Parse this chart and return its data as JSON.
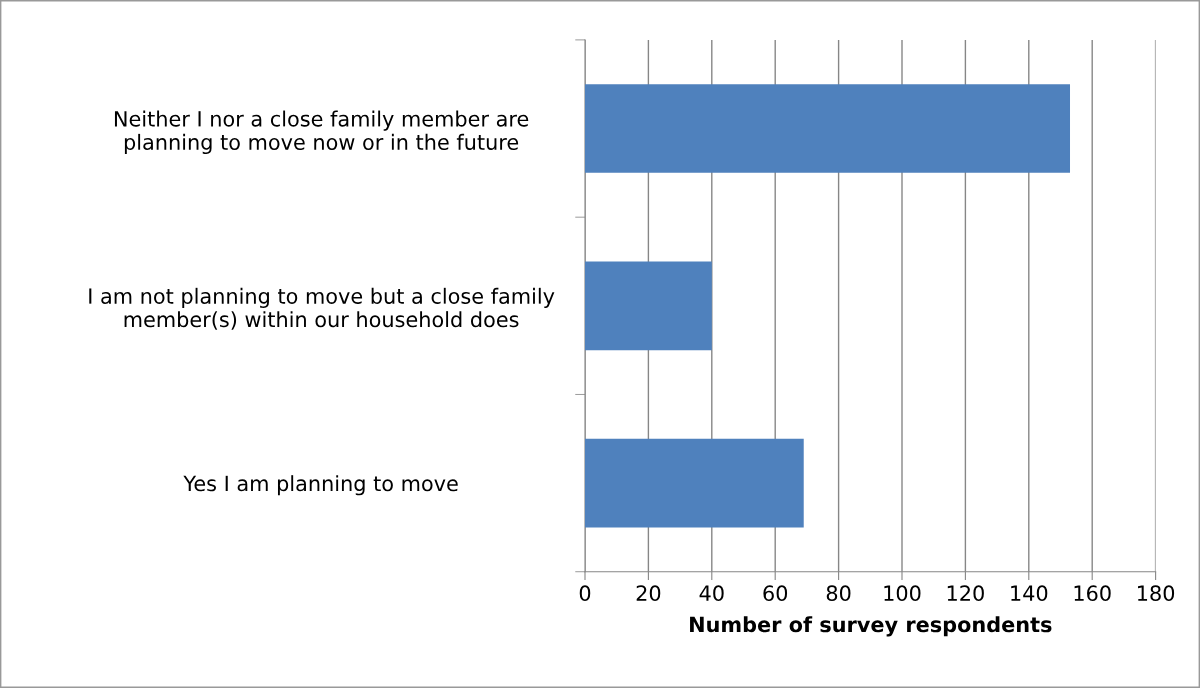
{
  "chart_data": {
    "type": "bar",
    "orientation": "horizontal",
    "categories": [
      "Neither I nor a close family member are planning to move now or in the future",
      "I am not planning to move but a close family member(s) within our household does",
      "Yes I am planning to move"
    ],
    "values": [
      153,
      40,
      69
    ],
    "color": "#4f81bd",
    "xlabel": "Number of survey respondents",
    "xlim": [
      0,
      180
    ],
    "xticks": [
      0,
      20,
      40,
      60,
      80,
      100,
      120,
      140,
      160,
      180
    ],
    "grid": "x",
    "legend": false
  }
}
